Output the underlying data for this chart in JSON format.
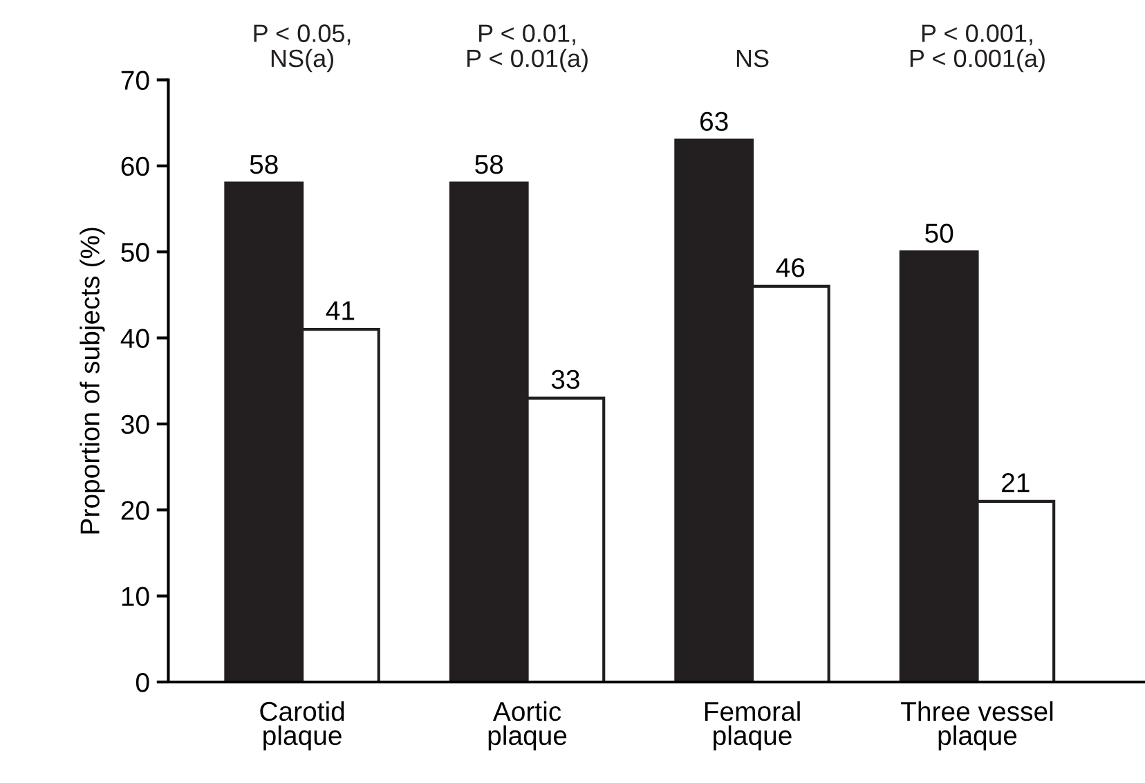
{
  "chart_data": {
    "type": "bar",
    "ylabel": "Proportion of subjects (%)",
    "categories": [
      "Carotid\nplaque",
      "Aortic\nplaque",
      "Femoral\nplaque",
      "Three vessel\nplaque"
    ],
    "series": [
      {
        "color": "#231f20",
        "values": [
          58,
          58,
          63,
          50
        ]
      },
      {
        "color": "#ffffff",
        "values": [
          41,
          33,
          46,
          21
        ]
      }
    ],
    "ylim": [
      0,
      70
    ],
    "yticks": [
      0,
      10,
      20,
      30,
      40,
      50,
      60,
      70
    ],
    "grid": false,
    "data_labels": true,
    "annotations": [
      "P < 0.05,\nNS(a)",
      "P < 0.01,\nP < 0.01(a)",
      "NS",
      "P < 0.001,\nP < 0.001(a)"
    ]
  }
}
